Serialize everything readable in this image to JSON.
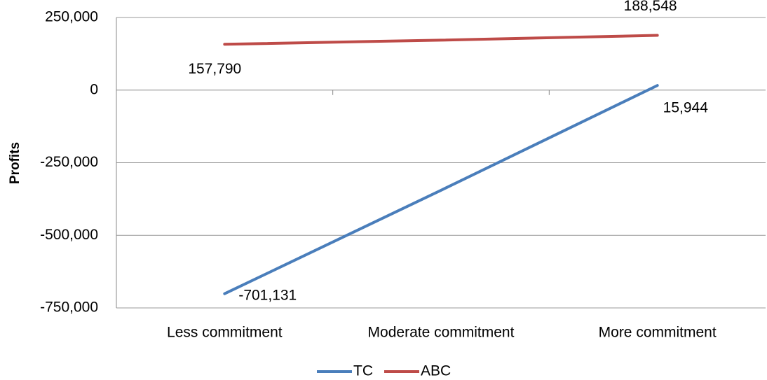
{
  "chart_data": {
    "type": "line",
    "ylabel": "Profits",
    "categories": [
      "Less commitment",
      "Moderate commitment",
      "More commitment"
    ],
    "series": [
      {
        "name": "TC",
        "color": "#4a7ebb",
        "values": [
          -701131,
          -345000,
          15944
        ],
        "value_labels": [
          "-701,131",
          null,
          "15,944"
        ]
      },
      {
        "name": "ABC",
        "color": "#be4b48",
        "values": [
          157790,
          172000,
          188548
        ],
        "value_labels": [
          "157,790",
          null,
          "188,548"
        ]
      }
    ],
    "ylim": [
      -750000,
      250000
    ],
    "yticks": [
      {
        "value": -750000,
        "label": "-750,000"
      },
      {
        "value": -500000,
        "label": "-500,000"
      },
      {
        "value": -250000,
        "label": "-250,000"
      },
      0,
      {
        "value": 250000,
        "label": "250,000"
      }
    ],
    "grid": true,
    "legend": "bottom"
  }
}
